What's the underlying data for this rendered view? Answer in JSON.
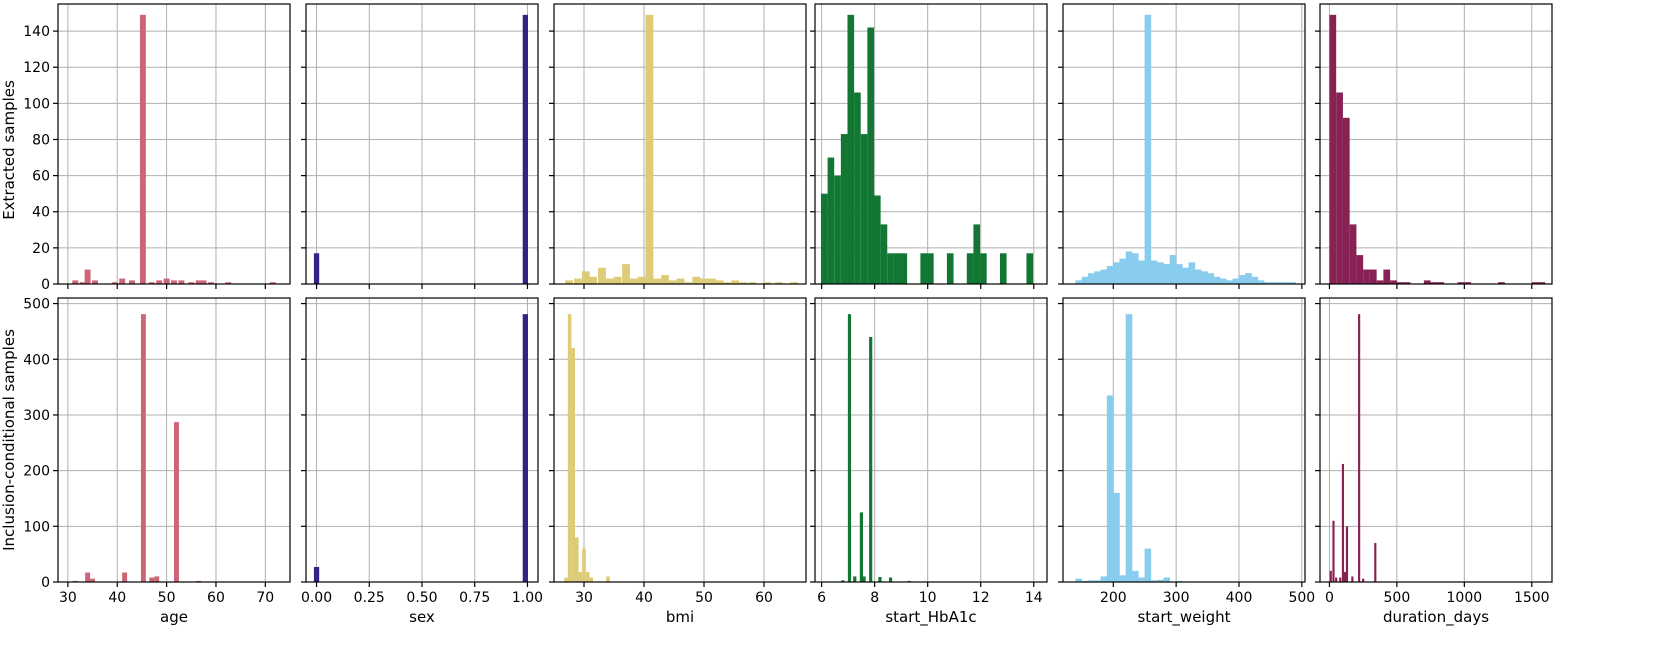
{
  "chart_data": [
    {
      "type": "bar",
      "row": 0,
      "col": 0,
      "xlabel": "",
      "ylabel": "Extracted samples",
      "xlim": [
        28,
        75
      ],
      "ylim": [
        0,
        155
      ],
      "grid": true,
      "color": "#CC6677",
      "bin_width": 1.2,
      "x_ticks": [
        30,
        40,
        50,
        60,
        70
      ],
      "y_ticks": [
        0,
        20,
        40,
        60,
        80,
        100,
        120,
        140
      ],
      "x": [
        31.5,
        33.0,
        34.0,
        35.5,
        39.5,
        41.0,
        43.0,
        45.2,
        47.0,
        48.5,
        50.0,
        51.5,
        53.0,
        55.0,
        56.5,
        57.5,
        59.0,
        62.5,
        71.5
      ],
      "values": [
        2,
        1,
        8,
        2,
        1,
        3,
        2,
        149,
        1,
        2,
        3,
        2,
        2,
        1,
        2,
        2,
        1,
        1,
        1
      ]
    },
    {
      "type": "bar",
      "row": 0,
      "col": 1,
      "xlabel": "",
      "ylim": [
        0,
        155
      ],
      "grid": true,
      "color": "#332288",
      "bin_width": 0.025,
      "x_ticks": [
        0,
        0.25,
        0.5,
        0.75,
        1.0
      ],
      "y_ticks": [
        0,
        20,
        40,
        60,
        80,
        100,
        120,
        140
      ],
      "x": [
        0.0,
        0.99
      ],
      "values": [
        17,
        149
      ],
      "xlim": [
        -0.05,
        1.05
      ]
    },
    {
      "type": "bar",
      "row": 0,
      "col": 2,
      "xlabel": "",
      "ylim": [
        0,
        155
      ],
      "grid": true,
      "color": "#DDCC77",
      "bin_width": 1.3,
      "x_ticks": [
        30,
        40,
        50,
        60
      ],
      "y_ticks": [
        0,
        20,
        40,
        60,
        80,
        100,
        120,
        140
      ],
      "xlim": [
        25,
        67
      ],
      "x": [
        27.5,
        29.0,
        30.3,
        31.5,
        33.0,
        34.3,
        35.6,
        37.0,
        38.3,
        39.6,
        40.9,
        42.2,
        43.5,
        44.8,
        46.1,
        47.4,
        48.7,
        50.0,
        51.3,
        52.6,
        53.9,
        55.2,
        56.5,
        58.0,
        60.5,
        62.5,
        65.0
      ],
      "values": [
        2,
        3,
        7,
        4,
        9,
        3,
        4,
        11,
        3,
        4,
        149,
        3,
        5,
        2,
        3,
        1,
        4,
        3,
        3,
        2,
        1,
        2,
        1,
        1,
        1,
        1,
        1
      ]
    },
    {
      "type": "bar",
      "row": 0,
      "col": 3,
      "xlabel": "",
      "ylim": [
        0,
        155
      ],
      "grid": true,
      "color": "#117733",
      "bin_width": 0.25,
      "x_ticks": [
        6,
        8,
        10,
        12,
        14
      ],
      "y_ticks": [
        0,
        20,
        40,
        60,
        80,
        100,
        120,
        140
      ],
      "xlim": [
        5.75,
        14.5
      ],
      "x": [
        6.1,
        6.35,
        6.6,
        6.85,
        7.1,
        7.35,
        7.6,
        7.85,
        8.1,
        8.35,
        8.6,
        8.85,
        9.1,
        9.85,
        10.1,
        10.85,
        11.6,
        11.85,
        12.1,
        12.85,
        13.85
      ],
      "values": [
        50,
        70,
        60,
        83,
        149,
        106,
        83,
        142,
        49,
        33,
        17,
        17,
        17,
        17,
        17,
        17,
        17,
        33,
        17,
        17,
        17
      ]
    },
    {
      "type": "bar",
      "row": 0,
      "col": 4,
      "xlabel": "",
      "ylim": [
        0,
        155
      ],
      "grid": true,
      "color": "#88CCEE",
      "bin_width": 10.5,
      "x_ticks": [
        200,
        300,
        400,
        500
      ],
      "y_ticks": [
        0,
        20,
        40,
        60,
        80,
        100,
        120,
        140
      ],
      "xlim": [
        120,
        505
      ],
      "x": [
        145,
        155,
        165,
        175,
        185,
        195,
        205,
        215,
        225,
        235,
        245,
        255,
        265,
        275,
        285,
        295,
        305,
        315,
        325,
        335,
        345,
        355,
        365,
        375,
        385,
        395,
        405,
        415,
        425,
        435,
        445,
        455,
        465,
        475,
        485
      ],
      "values": [
        2,
        4,
        6,
        7,
        8,
        10,
        12,
        14,
        18,
        17,
        13,
        149,
        13,
        12,
        11,
        16,
        11,
        9,
        12,
        8,
        7,
        6,
        4,
        3,
        2,
        3,
        5,
        6,
        4,
        2,
        1,
        1,
        1,
        1,
        1
      ]
    },
    {
      "type": "bar",
      "row": 0,
      "col": 5,
      "xlabel": "",
      "ylim": [
        0,
        155
      ],
      "grid": true,
      "color": "#882255",
      "bin_width": 50,
      "x_ticks": [
        0,
        500,
        1000,
        1500
      ],
      "y_ticks": [
        0,
        20,
        40,
        60,
        80,
        100,
        120,
        140
      ],
      "xlim": [
        -70,
        1650
      ],
      "x": [
        25,
        75,
        125,
        175,
        225,
        275,
        325,
        375,
        425,
        475,
        525,
        575,
        725,
        775,
        825,
        975,
        1025,
        1275,
        1525,
        1575
      ],
      "values": [
        149,
        106,
        92,
        33,
        16,
        8,
        8,
        2,
        8,
        2,
        1,
        1,
        2,
        1,
        1,
        1,
        1,
        1,
        1,
        1
      ]
    },
    {
      "type": "bar",
      "row": 1,
      "col": 0,
      "xlabel": "age",
      "ylabel": "Inclusion-conditional samples",
      "ylim": [
        0,
        510
      ],
      "grid": true,
      "color": "#CC6677",
      "bin_width": 1.0,
      "x_ticks": [
        30,
        40,
        50,
        60,
        70
      ],
      "y_ticks": [
        0,
        100,
        200,
        300,
        400,
        500
      ],
      "xlim": [
        28,
        75
      ],
      "x": [
        31.5,
        34.0,
        35.0,
        41.5,
        45.3,
        47.0,
        48.0,
        52.0,
        56.5
      ],
      "values": [
        2,
        17,
        6,
        17,
        481,
        8,
        10,
        287,
        2
      ]
    },
    {
      "type": "bar",
      "row": 1,
      "col": 1,
      "xlabel": "sex",
      "ylim": [
        0,
        510
      ],
      "grid": true,
      "color": "#332288",
      "bin_width": 0.025,
      "x_ticks": [
        0,
        0.25,
        0.5,
        0.75,
        1.0
      ],
      "y_ticks": [
        0,
        100,
        200,
        300,
        400,
        500
      ],
      "xlim": [
        -0.05,
        1.05
      ],
      "x": [
        0.0,
        0.99
      ],
      "values": [
        27,
        481
      ]
    },
    {
      "type": "bar",
      "row": 1,
      "col": 2,
      "xlabel": "bmi",
      "ylim": [
        0,
        510
      ],
      "grid": true,
      "color": "#DDCC77",
      "bin_width": 0.6,
      "x_ticks": [
        30,
        40,
        50,
        60
      ],
      "y_ticks": [
        0,
        100,
        200,
        300,
        400,
        500
      ],
      "xlim": [
        25,
        67
      ],
      "x": [
        27.0,
        27.6,
        28.2,
        28.8,
        29.4,
        30.0,
        30.6,
        31.2,
        34.0
      ],
      "values": [
        8,
        481,
        420,
        80,
        18,
        60,
        18,
        8,
        10
      ]
    },
    {
      "type": "bar",
      "row": 1,
      "col": 3,
      "xlabel": "start_HbA1c",
      "ylim": [
        0,
        510
      ],
      "grid": true,
      "color": "#117733",
      "bin_width": 0.12,
      "x_ticks": [
        6,
        8,
        10,
        12,
        14
      ],
      "y_ticks": [
        0,
        100,
        200,
        300,
        400,
        500
      ],
      "xlim": [
        5.75,
        14.5
      ],
      "x": [
        6.8,
        7.05,
        7.25,
        7.5,
        7.6,
        7.85,
        8.2,
        8.6,
        9.3
      ],
      "values": [
        3,
        481,
        10,
        125,
        10,
        440,
        9,
        8,
        2
      ]
    },
    {
      "type": "bar",
      "row": 1,
      "col": 4,
      "xlabel": "start_weight",
      "ylim": [
        0,
        510
      ],
      "grid": true,
      "color": "#88CCEE",
      "bin_width": 10.5,
      "x_ticks": [
        200,
        300,
        400,
        500
      ],
      "y_ticks": [
        0,
        100,
        200,
        300,
        400,
        500
      ],
      "xlim": [
        120,
        505
      ],
      "x": [
        145,
        155,
        165,
        175,
        185,
        195,
        205,
        215,
        225,
        235,
        245,
        255,
        265,
        275,
        285,
        305
      ],
      "values": [
        6,
        2,
        3,
        3,
        10,
        335,
        160,
        12,
        481,
        20,
        8,
        60,
        3,
        4,
        8,
        2
      ]
    },
    {
      "type": "bar",
      "row": 1,
      "col": 5,
      "xlabel": "duration_days",
      "ylim": [
        0,
        510
      ],
      "grid": true,
      "color": "#882255",
      "bin_width": 16,
      "x_ticks": [
        0,
        500,
        1000,
        1500
      ],
      "y_ticks": [
        0,
        100,
        200,
        300,
        400,
        500
      ],
      "xlim": [
        -70,
        1650
      ],
      "x": [
        10,
        30,
        50,
        80,
        100,
        115,
        130,
        170,
        220,
        250,
        340
      ],
      "values": [
        20,
        110,
        8,
        8,
        212,
        18,
        100,
        10,
        481,
        6,
        70
      ]
    }
  ]
}
